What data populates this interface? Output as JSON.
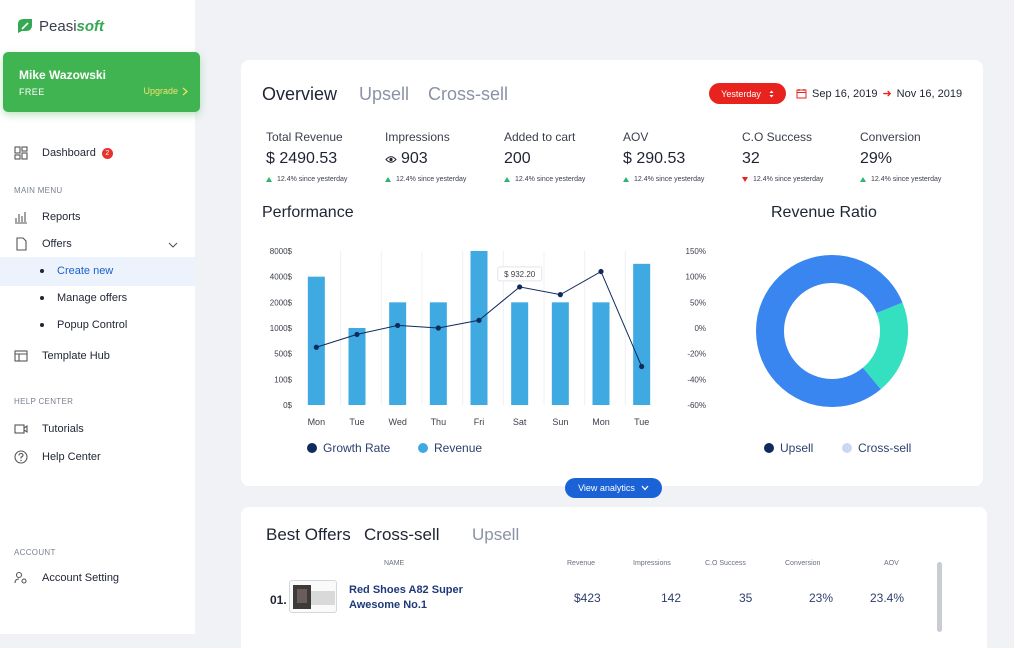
{
  "brand": {
    "name_prefix": "Peasi",
    "name_suffix": "soft"
  },
  "user": {
    "name": "Mike Wazowski",
    "plan": "FREE",
    "upgrade_label": "Upgrade"
  },
  "sidebar": {
    "dashboard": {
      "label": "Dashboard",
      "badge": "2"
    },
    "main_menu_label": "MAIN MENU",
    "reports": "Reports",
    "offers": "Offers",
    "offers_sub": [
      "Create new",
      "Manage offers",
      "Popup Control"
    ],
    "template_hub": "Template Hub",
    "help_center_label": "HELP CENTER",
    "tutorials": "Tutorials",
    "help_center": "Help Center",
    "account_label": "ACCOUNT",
    "account_setting": "Account Setting"
  },
  "overview": {
    "tabs": [
      "Overview",
      "Upsell",
      "Cross-sell"
    ],
    "period": "Yesterday",
    "date_from": "Sep 16, 2019",
    "date_to": "Nov 16, 2019",
    "kpis": [
      {
        "label": "Total Revenue",
        "value": "$ 2490.53",
        "delta": "12.4% since yesterday",
        "trend": "up"
      },
      {
        "label": "Impressions",
        "value": "903",
        "delta": "12.4% since yesterday",
        "trend": "up"
      },
      {
        "label": "Added to cart",
        "value": "200",
        "delta": "12.4% since yesterday",
        "trend": "up"
      },
      {
        "label": "AOV",
        "value": "$ 290.53",
        "delta": "12.4% since yesterday",
        "trend": "up"
      },
      {
        "label": "C.O Success",
        "value": "32",
        "delta": "12.4% since yesterday",
        "trend": "down"
      },
      {
        "label": "Conversion",
        "value": "29%",
        "delta": "12.4% since yesterday",
        "trend": "up"
      }
    ],
    "performance_title": "Performance",
    "ratio_title": "Revenue Ratio",
    "view_analytics": "View analytics"
  },
  "chart_data": [
    {
      "type": "bar",
      "title": "Performance",
      "categories": [
        "Mon",
        "Tue",
        "Wed",
        "Thu",
        "Fri",
        "Sat",
        "Sun",
        "Mon",
        "Tue"
      ],
      "left_ticks": [
        "8000$",
        "4000$",
        "2000$",
        "1000$",
        "500$",
        "100$",
        "0$"
      ],
      "right_ticks": [
        "150%",
        "100%",
        "50%",
        "0%",
        "-20%",
        "-40%",
        "-60%"
      ],
      "series": [
        {
          "name": "Revenue",
          "kind": "bar",
          "color": "#3fa9e2",
          "values": [
            4000,
            1000,
            2000,
            2000,
            8000,
            2000,
            2000,
            2000,
            6000
          ]
        },
        {
          "name": "Growth Rate",
          "kind": "line",
          "color": "#0f2a5c",
          "values": [
            -15,
            -5,
            5,
            0,
            15,
            80,
            65,
            110,
            -30
          ]
        }
      ],
      "annotation": "$ 932.20"
    },
    {
      "type": "pie",
      "title": "Revenue Ratio",
      "series": [
        {
          "name": "Upsell",
          "value": 80,
          "color": "#3a86f0"
        },
        {
          "name": "Cross-sell",
          "value": 20,
          "color": "#34e0c0"
        }
      ],
      "legend_colors": {
        "Upsell": "#0f2a5c",
        "Cross-sell": "#c9d8f5"
      }
    }
  ],
  "offers": {
    "title_prefix": "Best Offers",
    "tabs": [
      "Cross-sell",
      "Upsell"
    ],
    "columns": [
      "NAME",
      "Revenue",
      "Impressions",
      "C.O Success",
      "Conversion",
      "AOV"
    ],
    "rows": [
      {
        "rank": "01.",
        "name": "Red Shoes A82 Super Awesome No.1",
        "revenue": "$423",
        "impressions": "142",
        "co_success": "35",
        "conversion": "23%",
        "aov": "23.4%"
      }
    ]
  },
  "colors": {
    "brand_green": "#41b452",
    "accent_blue": "#1b62d6",
    "alert_red": "#e8231e"
  }
}
